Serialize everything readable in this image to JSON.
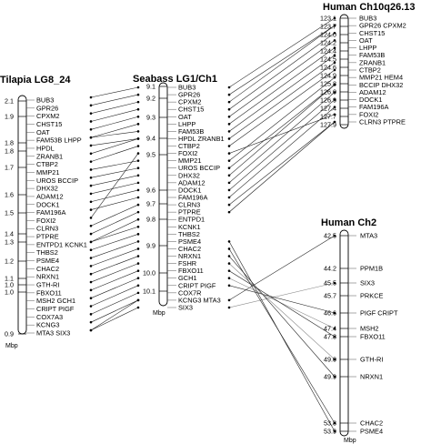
{
  "titles": {
    "tilapia": "Tilapia LG8_24",
    "seabass": "Seabass LG1/Ch1",
    "human10": "Human  Ch10q26.13",
    "human2": "Human  Ch2"
  },
  "unit_label": "Mbp",
  "colors": {
    "black": "#000000",
    "red": "#e8261f",
    "gray": "#888888",
    "line": "#222222"
  },
  "tilapia": {
    "positions": [
      "2.1",
      "1.9",
      "1.8",
      "1.8",
      "1.7",
      "1.6",
      "1.5",
      "1.4",
      "1.3",
      "1.2",
      "1.1",
      "1.0",
      "1.0",
      "0.9"
    ],
    "genes": [
      {
        "label": "BUB3",
        "color": "red"
      },
      {
        "label": "GPR26",
        "color": "black"
      },
      {
        "label": "CPXM2",
        "color": "black"
      },
      {
        "label": "CHST15",
        "color": "red"
      },
      {
        "label": "OAT",
        "color": "black"
      },
      {
        "label": "FAM53B LHPP",
        "color": "red"
      },
      {
        "label": "HPDL",
        "color": "red"
      },
      {
        "label": "ZRANB1",
        "color": "red"
      },
      {
        "label": "CTBP2",
        "color": "red"
      },
      {
        "label": "MMP21",
        "color": "red"
      },
      {
        "label": "UROS BCCIP",
        "color": "red"
      },
      {
        "label": "DHX32",
        "color": "red"
      },
      {
        "label": "ADAM12",
        "color": "black"
      },
      {
        "label": "DOCK1",
        "color": "red"
      },
      {
        "label": "FAM196A",
        "color": "black"
      },
      {
        "label": "FOXI2",
        "color": "red"
      },
      {
        "label": "CLRN3",
        "color": "black"
      },
      {
        "label": "PTPRE",
        "color": "black"
      },
      {
        "label": "ENTPD1 KCNK1",
        "color": "black"
      },
      {
        "label": "THBS2",
        "color": "black"
      },
      {
        "label": "PSME4",
        "color": "black"
      },
      {
        "label": "CHAC2",
        "color": "black"
      },
      {
        "label": "NRXN1",
        "color": "black"
      },
      {
        "label": "GTH-RI",
        "color": "black"
      },
      {
        "label": "FBXO11",
        "color": "red"
      },
      {
        "label": "MSH2 GCH1",
        "color": "black"
      },
      {
        "label": "CRIPT PIGF",
        "color": "red"
      },
      {
        "label": "COX7A3",
        "color": "red"
      },
      {
        "label": "KCNG3",
        "color": "black"
      },
      {
        "label": "MTA3 SIX3",
        "color": "red"
      }
    ]
  },
  "seabass": {
    "positions": [
      "9.1",
      "9.2",
      "9.3",
      "9.4",
      "9.5",
      "9.6",
      "9.7",
      "9.8",
      "9.9",
      "10.0",
      "10.1"
    ],
    "genes": [
      {
        "label": "BUB3"
      },
      {
        "label": "GPR26"
      },
      {
        "label": "CPXM2"
      },
      {
        "label": "CHST15"
      },
      {
        "label": "OAT"
      },
      {
        "label": "LHPP"
      },
      {
        "label": "FAM53B"
      },
      {
        "label": "HPDL ZRANB1"
      },
      {
        "label": "CTBP2"
      },
      {
        "label": "FOXI2"
      },
      {
        "label": "MMP21"
      },
      {
        "label": "UROS BCCIP"
      },
      {
        "label": "DHX32"
      },
      {
        "label": "ADAM12"
      },
      {
        "label": "DOCK1"
      },
      {
        "label": "FAM196A"
      },
      {
        "label": "CLRN3"
      },
      {
        "label": "PTPRE"
      },
      {
        "label": "ENTPD1"
      },
      {
        "label": "KCNK1"
      },
      {
        "label": "THBS2"
      },
      {
        "label": "PSME4"
      },
      {
        "label": "CHAC2"
      },
      {
        "label": "NRXN1"
      },
      {
        "label": "FSHR"
      },
      {
        "label": "FBXO11"
      },
      {
        "label": "GCH1"
      },
      {
        "label": "CRIPT PIGF"
      },
      {
        "label": "COX7R"
      },
      {
        "label": "KCNG3 MTA3"
      },
      {
        "label": "SIX3"
      }
    ]
  },
  "human10": {
    "positions": [
      "123.1",
      "123.7",
      "124.0",
      "124.2",
      "124.4",
      "124.5",
      "124.6",
      "124.9",
      "125.8",
      "126.0",
      "126.9",
      "127.4",
      "127.7",
      "127.9"
    ],
    "genes": [
      {
        "label": "BUB3"
      },
      {
        "label": "GPR26 CPXM2"
      },
      {
        "label": "CHST15"
      },
      {
        "label": "OAT"
      },
      {
        "label": "LHPP"
      },
      {
        "label": "FAM53B"
      },
      {
        "label": "ZRANB1"
      },
      {
        "label": "CTBP2"
      },
      {
        "label": "MMP21 HEM4"
      },
      {
        "label": "BCCIP DHX32"
      },
      {
        "label": "ADAM12"
      },
      {
        "label": "DOCK1"
      },
      {
        "label": "FAM196A"
      },
      {
        "label": "FOXI2"
      },
      {
        "label": "CLRN3 PTPRE"
      }
    ]
  },
  "human2": {
    "rows": [
      {
        "pos": "42.5",
        "label": "MTA3"
      },
      {
        "pos": "44.2",
        "label": "PPM1B"
      },
      {
        "pos": "45.5",
        "label": "SIX3"
      },
      {
        "pos": "45.7",
        "label": "PRKCE"
      },
      {
        "pos": "46.6",
        "label": "PIGF CRIPT"
      },
      {
        "pos": "47.4",
        "label": "MSH2"
      },
      {
        "pos": "47.8",
        "label": "FBXO11"
      },
      {
        "pos": "49.0",
        "label": "GTH-RI"
      },
      {
        "pos": "49.9",
        "label": "NRXN1"
      }
    ],
    "bottom": [
      {
        "pos": "53.8",
        "label": "CHAC2"
      },
      {
        "pos": "53.9",
        "label": "PSME4"
      }
    ]
  }
}
